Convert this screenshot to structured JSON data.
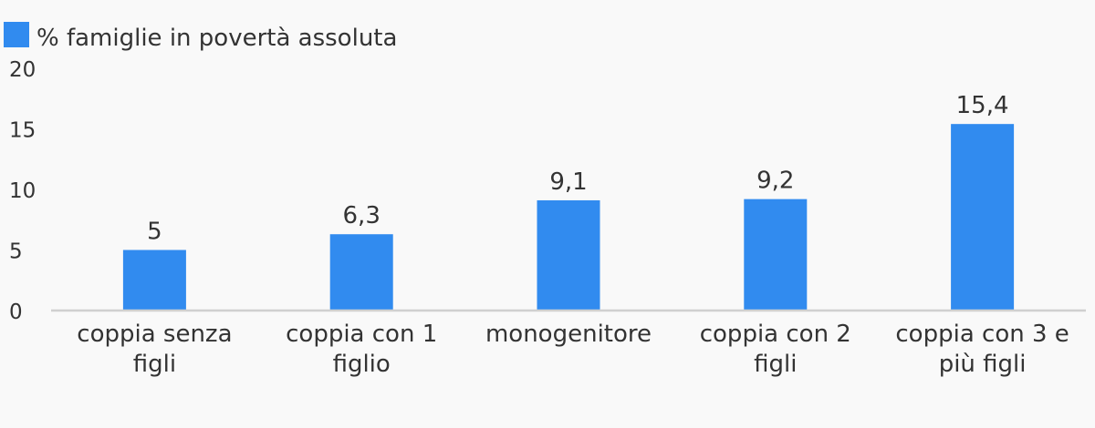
{
  "chart_data": {
    "type": "bar",
    "categories": [
      [
        "coppia senza",
        "figli"
      ],
      [
        "coppia con 1",
        "figlio"
      ],
      [
        "monogenitore"
      ],
      [
        "coppia con 2",
        "figli"
      ],
      [
        "coppia con 3 e",
        "più figli"
      ]
    ],
    "series": [
      {
        "name": "% famiglie in povertà assoluta",
        "values": [
          5,
          6.3,
          9.1,
          9.2,
          15.4
        ],
        "labels": [
          "5",
          "6,3",
          "9,1",
          "9,2",
          "15,4"
        ],
        "color": "#318bef"
      }
    ],
    "y_ticks": [
      "0",
      "5",
      "10",
      "15",
      "20"
    ],
    "ylim": [
      0,
      20
    ],
    "grid": false,
    "legend_position": "top-left",
    "axis_color": "#d0d0d0",
    "text_color": "#333333",
    "background": "#f9f9f9"
  }
}
